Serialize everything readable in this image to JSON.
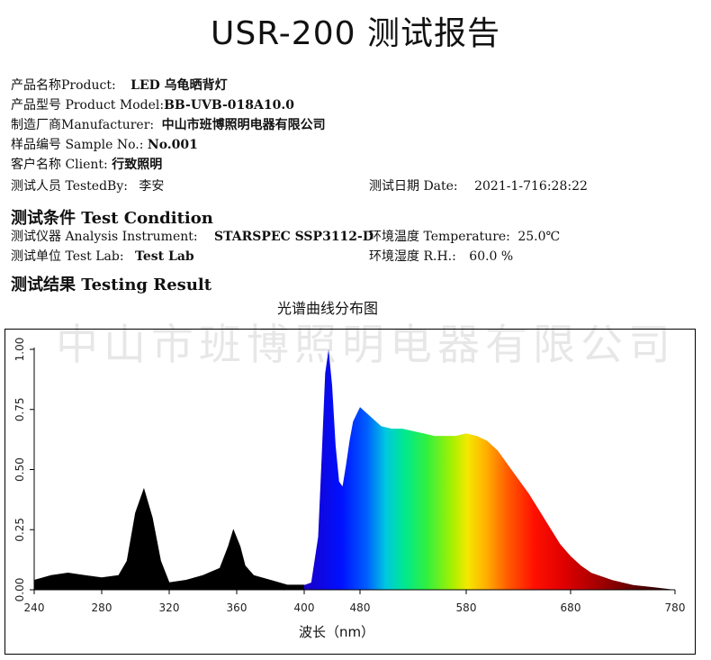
{
  "report": {
    "title": "USR-200 测试报告",
    "product_label": "产品名称Product:",
    "product_value": "LED 乌龟晒背灯",
    "model_label": "产品型号 Product Model:",
    "model_value": "BB-UVB-018A10.0",
    "manufacturer_label": "制造厂商Manufacturer:",
    "manufacturer_value": "中山市班博照明电器有限公司",
    "sample_label": "样品编号 Sample No.:",
    "sample_value": "No.001",
    "client_label": "客户名称 Client:",
    "client_value": "行致照明",
    "tester_label": "测试人员 TestedBy:",
    "tester_value": "李安",
    "date_label": "测试日期 Date:",
    "date_value": "2021-1-716:28:22",
    "condition_heading": "测试条件 Test Condition",
    "instrument_label": "测试仪器 Analysis Instrument:",
    "instrument_value": "STARSPEC SSP3112-D",
    "temperature_label": "环境温度 Temperature:",
    "temperature_value": "25.0℃",
    "lab_label": "测试单位 Test Lab:",
    "lab_value": "Test Lab",
    "rh_label": "环境湿度 R.H.:",
    "rh_value": "60.0 %",
    "result_heading": "测试结果 Testing Result",
    "watermark": "中山市班博照明电器有限公司"
  },
  "chart_data": {
    "type": "area",
    "title": "光谱曲线分布图",
    "xlabel": "波长（nm）",
    "ylabel": "",
    "xlim": [
      240,
      780
    ],
    "ylim": [
      0,
      1.0
    ],
    "x_ticks": [
      "240",
      "280",
      "320",
      "360",
      "400",
      "480",
      "580",
      "680",
      "780"
    ],
    "y_ticks": [
      "0.00",
      "0.25",
      "0.50",
      "0.75",
      "1.00"
    ],
    "grid": false,
    "x": [
      240,
      250,
      260,
      270,
      280,
      290,
      295,
      300,
      305,
      310,
      315,
      320,
      330,
      340,
      350,
      355,
      358,
      362,
      365,
      370,
      380,
      390,
      400,
      410,
      420,
      425,
      430,
      435,
      440,
      445,
      450,
      455,
      460,
      465,
      470,
      480,
      490,
      500,
      510,
      520,
      530,
      540,
      550,
      560,
      570,
      580,
      590,
      600,
      610,
      620,
      630,
      640,
      650,
      660,
      670,
      680,
      690,
      700,
      720,
      740,
      760,
      780
    ],
    "y": [
      0.04,
      0.06,
      0.07,
      0.06,
      0.05,
      0.06,
      0.12,
      0.32,
      0.42,
      0.3,
      0.12,
      0.03,
      0.04,
      0.06,
      0.09,
      0.18,
      0.25,
      0.18,
      0.1,
      0.06,
      0.04,
      0.02,
      0.02,
      0.03,
      0.22,
      0.55,
      0.9,
      1.0,
      0.85,
      0.6,
      0.45,
      0.43,
      0.52,
      0.62,
      0.7,
      0.76,
      0.72,
      0.68,
      0.67,
      0.67,
      0.66,
      0.65,
      0.64,
      0.64,
      0.64,
      0.65,
      0.64,
      0.62,
      0.58,
      0.52,
      0.46,
      0.4,
      0.33,
      0.26,
      0.19,
      0.14,
      0.1,
      0.07,
      0.04,
      0.02,
      0.01,
      0.0
    ]
  }
}
